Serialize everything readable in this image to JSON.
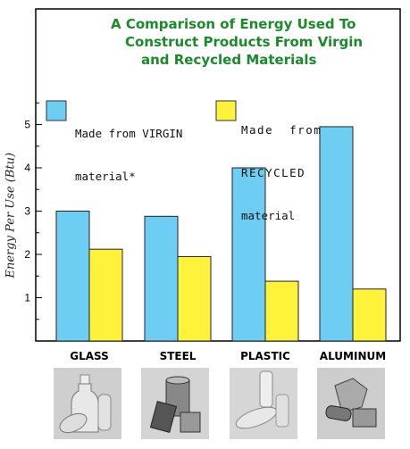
{
  "title_lines": [
    "A Comparison of Energy Used To",
    "Construct Products From Virgin",
    "and Recycled Materials"
  ],
  "chart_data": {
    "type": "bar",
    "title": "A Comparison of Energy Used To Construct Products From Virgin and Recycled Materials",
    "categories": [
      "GLASS",
      "STEEL",
      "PLASTIC",
      "ALUMINUM"
    ],
    "series": [
      {
        "name": "Made from VIRGIN material*",
        "values": [
          3.0,
          2.88,
          4.0,
          4.95
        ],
        "color": "#6dcdf2"
      },
      {
        "name": "Made from RECYCLED material",
        "values": [
          2.12,
          1.95,
          1.38,
          1.2
        ],
        "color": "#fff23a"
      }
    ],
    "ylabel": "Energy Per Use (Btu)",
    "yticks": [
      1,
      2,
      3,
      4,
      5
    ],
    "ylim": [
      0,
      6
    ],
    "grid": false,
    "legend_position": "top"
  },
  "legend": {
    "virgin_lines": [
      "Made from VIRGIN",
      "material*"
    ],
    "recycled_lines": [
      "Made  from",
      "RECYCLED",
      "material"
    ]
  },
  "photos": [
    {
      "label": "glass-bottles-photo-icon"
    },
    {
      "label": "steel-cans-photo-icon"
    },
    {
      "label": "plastic-bottles-photo-icon"
    },
    {
      "label": "aluminum-cans-photo-icon"
    }
  ]
}
